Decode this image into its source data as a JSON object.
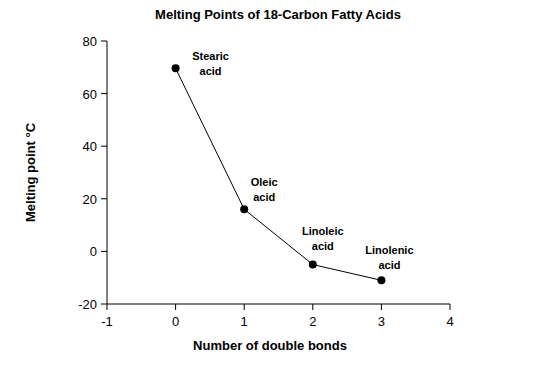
{
  "chart_data": {
    "type": "line",
    "title": "Melting Points of 18-Carbon Fatty Acids",
    "x_label": "Number of double bonds",
    "y_label": "Melting point °C",
    "x": [
      0,
      1,
      2,
      3
    ],
    "series": [
      {
        "name": null,
        "color": "#000000",
        "values": [
          69.6,
          16,
          -5,
          -11
        ],
        "marker": "circle",
        "line_style": "solid"
      }
    ],
    "annotations": [
      "Stearic acid",
      "Oleic acid",
      "Linoleic acid",
      "Linolenic acid"
    ],
    "xlim": [
      -1,
      4
    ],
    "xticks": [
      -1,
      0,
      1,
      2,
      3,
      4
    ],
    "ylim": [
      -20,
      80
    ],
    "yticks": [
      -20,
      0,
      20,
      40,
      60,
      80
    ],
    "grid": false
  }
}
